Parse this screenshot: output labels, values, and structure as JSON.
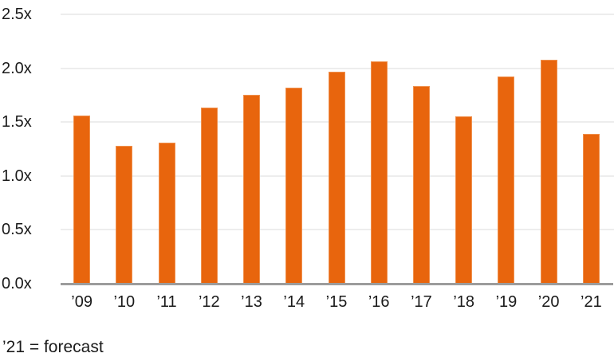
{
  "chart_data": {
    "type": "bar",
    "title": "",
    "xlabel": "",
    "ylabel": "",
    "categories": [
      "’09",
      "’10",
      "’11",
      "’12",
      "’13",
      "’14",
      "’15",
      "’16",
      "’17",
      "’18",
      "’19",
      "’20",
      "’21"
    ],
    "values": [
      1.56,
      1.28,
      1.31,
      1.63,
      1.75,
      1.82,
      1.97,
      2.06,
      1.83,
      1.55,
      1.92,
      2.08,
      1.39
    ],
    "ylim": [
      0,
      2.5
    ],
    "ytick_step": 0.5,
    "ytick_labels": [
      "0.0x",
      "0.5x",
      "1.0x",
      "1.5x",
      "2.0x",
      "2.5x"
    ],
    "grid": true,
    "legend": "none",
    "bar_color": "#e8650d",
    "bar_border_color": "#f0914e",
    "gridline_color": "#ededed",
    "axis_color": "#9c9c9c",
    "text_color": "#1a1a1a"
  },
  "footnote": "’21 = forecast"
}
